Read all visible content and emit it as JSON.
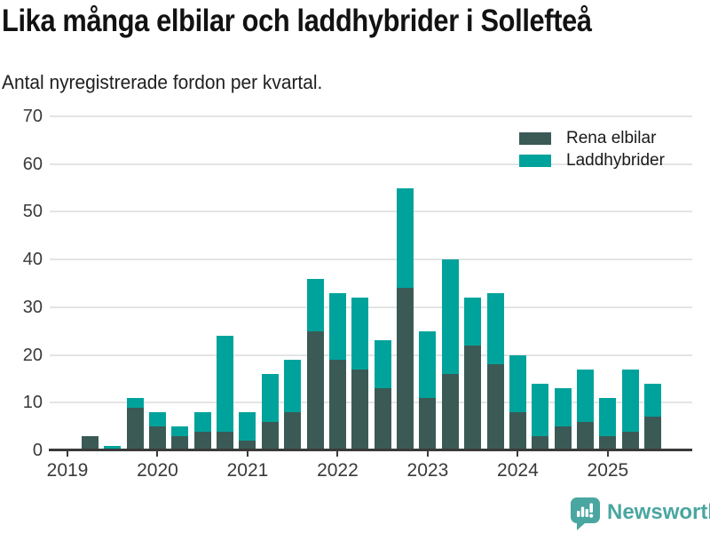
{
  "title": "Lika många elbilar och laddhybrider i Sollefteå",
  "subtitle": "Antal nyregistrerade fordon per kvartal.",
  "legend": [
    {
      "label": "Rena elbilar",
      "color": "#3b5a56"
    },
    {
      "label": "Laddhybrider",
      "color": "#00a39b"
    }
  ],
  "colors": {
    "ev_series": "#3b5a56",
    "hybrid_series": "#00a39b",
    "axis": "#3a3a3a",
    "grid": "#e4e4e4",
    "brand_teal": "#4aa6a0"
  },
  "footer": {
    "brand": "Newsworthy",
    "logo_icon": "bar-chart-speech-bubble-icon"
  },
  "chart_data": {
    "type": "bar",
    "stacked": true,
    "title": "Lika många elbilar och laddhybrider i Sollefteå",
    "subtitle": "Antal nyregistrerade fordon per kvartal.",
    "categories": [
      "2019 Q1",
      "2019 Q2",
      "2019 Q3",
      "2019 Q4",
      "2020 Q1",
      "2020 Q2",
      "2020 Q3",
      "2020 Q4",
      "2021 Q1",
      "2021 Q2",
      "2021 Q3",
      "2021 Q4",
      "2022 Q1",
      "2022 Q2",
      "2022 Q3",
      "2022 Q4",
      "2023 Q1",
      "2023 Q2",
      "2023 Q3",
      "2023 Q4",
      "2024 Q1",
      "2024 Q2",
      "2024 Q3",
      "2024 Q4",
      "2025 Q1",
      "2025 Q2",
      "2025 Q3"
    ],
    "series": [
      {
        "name": "Rena elbilar",
        "color": "#3b5a56",
        "values": [
          0,
          3,
          0,
          9,
          5,
          3,
          4,
          4,
          2,
          6,
          8,
          25,
          19,
          17,
          13,
          34,
          11,
          16,
          22,
          18,
          8,
          3,
          5,
          6,
          3,
          4,
          7
        ]
      },
      {
        "name": "Laddhybrider",
        "color": "#00a39b",
        "values": [
          0,
          0,
          1,
          2,
          3,
          2,
          4,
          20,
          6,
          10,
          11,
          11,
          14,
          15,
          10,
          21,
          14,
          24,
          10,
          15,
          12,
          11,
          8,
          11,
          8,
          13,
          7
        ]
      }
    ],
    "x_tick_labels": [
      "2019",
      "2020",
      "2021",
      "2022",
      "2023",
      "2024",
      "2025"
    ],
    "x_tick_quarter_indexes": [
      0,
      4,
      8,
      12,
      16,
      20,
      24
    ],
    "ylim": [
      0,
      70
    ],
    "yticks": [
      0,
      10,
      20,
      30,
      40,
      50,
      60,
      70
    ],
    "grid": "horizontal",
    "legend_position": "top-right"
  }
}
